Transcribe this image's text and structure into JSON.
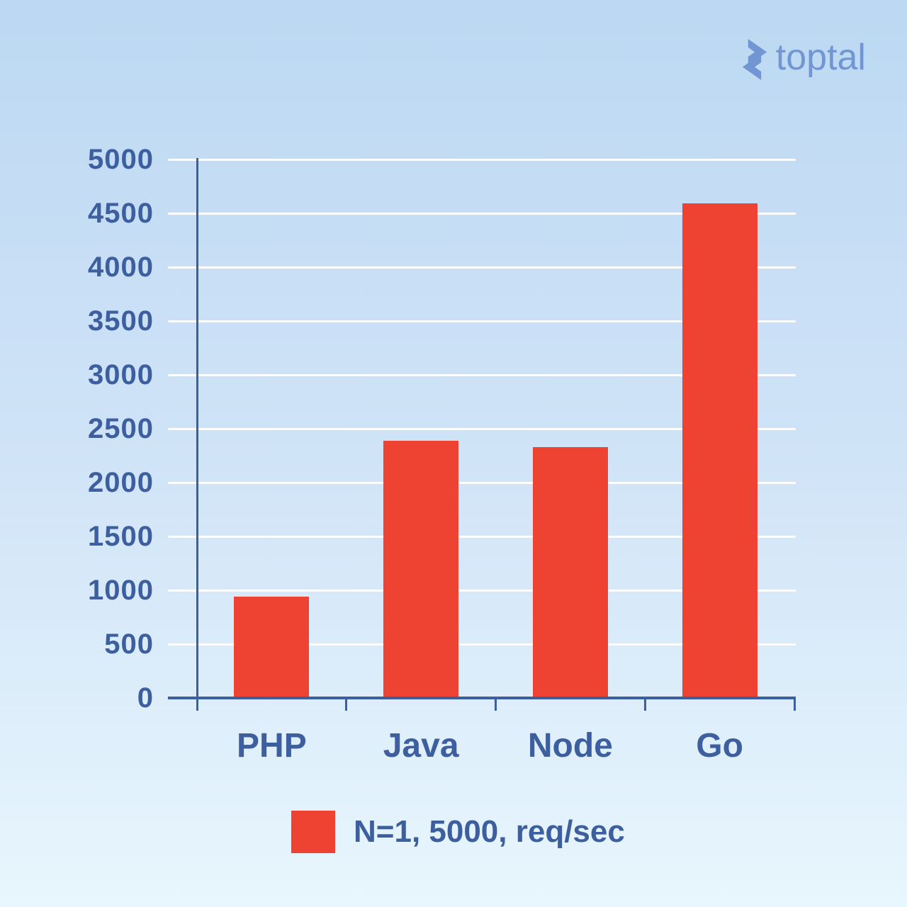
{
  "brand": {
    "name": "toptal",
    "color": "#7295d3"
  },
  "chart_data": {
    "type": "bar",
    "categories": [
      "PHP",
      "Java",
      "Node",
      "Go"
    ],
    "values": [
      940,
      2390,
      2330,
      4590
    ],
    "series": [
      {
        "name": "N=1, 5000, req/sec",
        "values": [
          940,
          2390,
          2330,
          4590
        ]
      }
    ],
    "title": "",
    "xlabel": "",
    "ylabel": "",
    "ylim": [
      0,
      5000
    ],
    "yticks": [
      0,
      500,
      1000,
      1500,
      2000,
      2500,
      3000,
      3500,
      4000,
      4500,
      5000
    ],
    "grid": "horizontal",
    "legend_position": "bottom",
    "bar_color": "#ee4232",
    "axis_color": "#3c5fa0",
    "text_color": "#3d5f9f",
    "grid_color": "#ffffff",
    "background_top": "#bcd8f2",
    "background_bottom": "#e8f6fd"
  },
  "legend": {
    "label": "N=1, 5000, req/sec",
    "swatch_color": "#ee4232"
  }
}
